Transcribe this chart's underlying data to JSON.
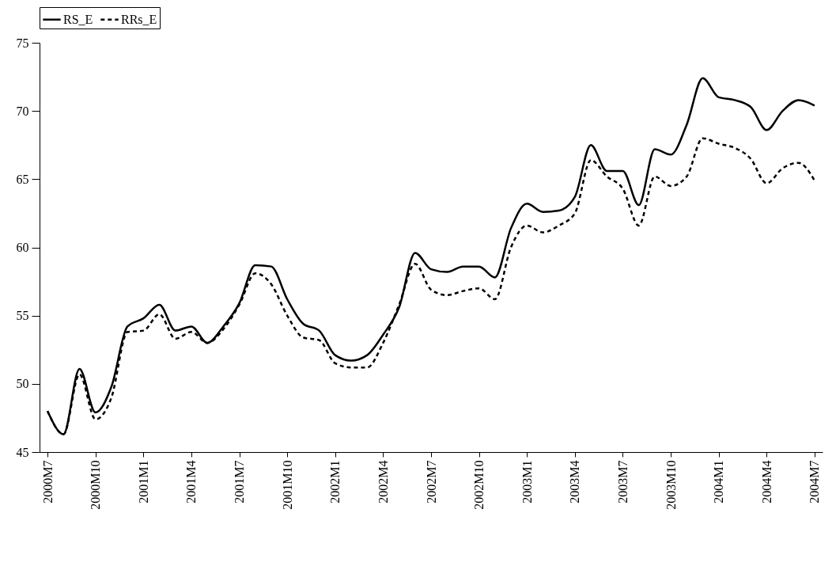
{
  "chart_data": {
    "type": "line",
    "legend": "top",
    "grid": false,
    "marker": "none",
    "categories": [
      "2000M7",
      null,
      null,
      "2000M10",
      null,
      null,
      "2001M1",
      null,
      null,
      "2001M4",
      null,
      null,
      "2001M7",
      null,
      null,
      "2001M10",
      null,
      null,
      "2002M1",
      null,
      null,
      "2002M4",
      null,
      null,
      "2002M7",
      null,
      null,
      "2002M10",
      null,
      null,
      "2003M1",
      null,
      null,
      "2003M4",
      null,
      null,
      "2003M7",
      null,
      null,
      "2003M10",
      null,
      null,
      "2004M1",
      null,
      null,
      "2004M4",
      null,
      null,
      "2004M7"
    ],
    "ylim": [
      45,
      75
    ],
    "yticks": [
      45,
      50,
      55,
      60,
      65,
      70,
      75
    ],
    "series": [
      {
        "name": "RS_E",
        "color": "#000000",
        "line_style": "solid",
        "values": [
          48.0,
          46.3,
          51.1,
          47.9,
          49.8,
          54.2,
          54.8,
          55.8,
          53.9,
          54.2,
          53.0,
          54.2,
          55.9,
          58.7,
          58.6,
          56.2,
          54.4,
          53.9,
          52.1,
          51.7,
          52.1,
          53.6,
          55.6,
          59.6,
          58.4,
          58.2,
          58.6,
          58.6,
          57.8,
          61.4,
          63.2,
          62.6,
          62.7,
          63.7,
          67.5,
          65.6,
          65.6,
          63.1,
          67.2,
          66.8,
          69.0,
          72.4,
          71.0,
          70.8,
          70.3,
          68.6,
          70.0,
          70.8,
          70.4
        ]
      },
      {
        "name": "RRs_E",
        "color": "#000000",
        "line_style": "dashed",
        "values": [
          48.0,
          46.3,
          50.7,
          47.4,
          49.0,
          53.8,
          53.9,
          55.1,
          53.3,
          53.8,
          53.0,
          54.0,
          55.8,
          58.1,
          57.3,
          55.0,
          53.4,
          53.2,
          51.5,
          51.2,
          51.2,
          53.0,
          55.8,
          58.8,
          56.9,
          56.5,
          56.8,
          57.0,
          56.2,
          60.0,
          61.6,
          61.1,
          61.6,
          62.5,
          66.4,
          65.2,
          64.3,
          61.6,
          65.2,
          64.5,
          65.2,
          68.0,
          67.6,
          67.3,
          66.5,
          64.7,
          65.8,
          66.2,
          64.9
        ]
      }
    ]
  }
}
